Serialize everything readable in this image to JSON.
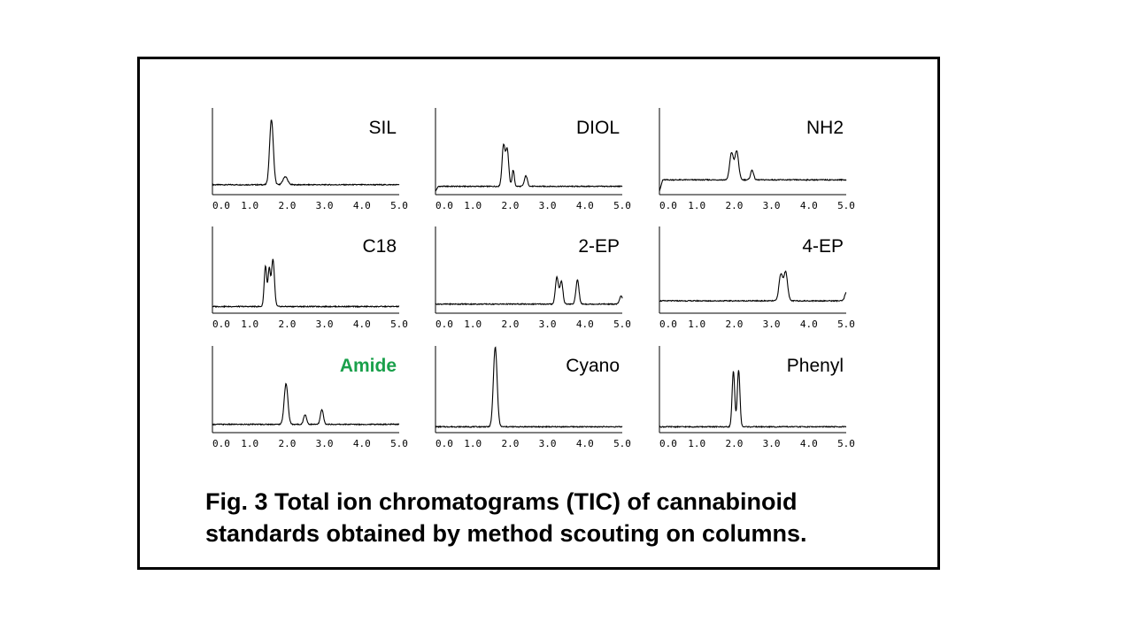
{
  "caption": {
    "line1": "Fig. 3  Total ion chromatograms (TIC) of cannabinoid",
    "line2": "standards obtained by method scouting on columns."
  },
  "colors": {
    "highlight": "#1aa04b",
    "default": "#000000"
  },
  "chart_data": [
    {
      "type": "line",
      "title": "SIL",
      "title_color": "#000000",
      "xticks": [
        "0.0",
        "1.0",
        "2.0",
        "3.0",
        "4.0",
        "5.0"
      ],
      "xlim": [
        0,
        5
      ],
      "baseline": 0.1,
      "start_drop": false,
      "peaks": [
        {
          "x": 1.58,
          "height": 0.8,
          "width": 0.05
        },
        {
          "x": 1.95,
          "height": 0.1,
          "width": 0.06
        }
      ]
    },
    {
      "type": "line",
      "title": "DIOL",
      "title_color": "#000000",
      "xticks": [
        "0.0",
        "1.0",
        "2.0",
        "3.0",
        "4.0",
        "5.0"
      ],
      "xlim": [
        0,
        5
      ],
      "baseline": 0.08,
      "start_drop": true,
      "peaks": [
        {
          "x": 1.82,
          "height": 0.5,
          "width": 0.04
        },
        {
          "x": 1.92,
          "height": 0.45,
          "width": 0.04
        },
        {
          "x": 2.08,
          "height": 0.2,
          "width": 0.03
        },
        {
          "x": 2.42,
          "height": 0.13,
          "width": 0.04
        }
      ]
    },
    {
      "type": "line",
      "title": "NH2",
      "title_color": "#000000",
      "xticks": [
        "0.0",
        "1.0",
        "2.0",
        "3.0",
        "4.0",
        "5.0"
      ],
      "xlim": [
        0,
        5
      ],
      "baseline": 0.16,
      "start_drop": true,
      "peaks": [
        {
          "x": 1.93,
          "height": 0.33,
          "width": 0.05
        },
        {
          "x": 2.07,
          "height": 0.35,
          "width": 0.05
        },
        {
          "x": 2.48,
          "height": 0.12,
          "width": 0.04
        }
      ]
    },
    {
      "type": "line",
      "title": "C18",
      "title_color": "#000000",
      "xticks": [
        "0.0",
        "1.0",
        "2.0",
        "3.0",
        "4.0",
        "5.0"
      ],
      "xlim": [
        0,
        5
      ],
      "baseline": 0.06,
      "start_drop": false,
      "peaks": [
        {
          "x": 1.42,
          "height": 0.5,
          "width": 0.035
        },
        {
          "x": 1.52,
          "height": 0.45,
          "width": 0.03
        },
        {
          "x": 1.62,
          "height": 0.58,
          "width": 0.04
        }
      ]
    },
    {
      "type": "line",
      "title": "2-EP",
      "title_color": "#000000",
      "xticks": [
        "0.0",
        "1.0",
        "2.0",
        "3.0",
        "4.0",
        "5.0"
      ],
      "xlim": [
        0,
        5
      ],
      "baseline": 0.09,
      "start_drop": false,
      "peaks": [
        {
          "x": 3.25,
          "height": 0.33,
          "width": 0.04
        },
        {
          "x": 3.37,
          "height": 0.28,
          "width": 0.04
        },
        {
          "x": 3.8,
          "height": 0.3,
          "width": 0.04
        },
        {
          "x": 4.97,
          "height": 0.1,
          "width": 0.04
        }
      ]
    },
    {
      "type": "line",
      "title": "4-EP",
      "title_color": "#000000",
      "xticks": [
        "0.0",
        "1.0",
        "2.0",
        "3.0",
        "4.0",
        "5.0"
      ],
      "xlim": [
        0,
        5
      ],
      "baseline": 0.13,
      "start_drop": false,
      "peaks": [
        {
          "x": 3.25,
          "height": 0.32,
          "width": 0.05
        },
        {
          "x": 3.38,
          "height": 0.35,
          "width": 0.05
        },
        {
          "x": 5.0,
          "height": 0.1,
          "width": 0.04
        }
      ]
    },
    {
      "type": "line",
      "title": "Amide",
      "title_color": "#1aa04b",
      "xticks": [
        "0.0",
        "1.0",
        "2.0",
        "3.0",
        "4.0",
        "5.0"
      ],
      "xlim": [
        0,
        5
      ],
      "baseline": 0.08,
      "start_drop": false,
      "peaks": [
        {
          "x": 1.97,
          "height": 0.5,
          "width": 0.05
        },
        {
          "x": 2.48,
          "height": 0.12,
          "width": 0.04
        },
        {
          "x": 2.93,
          "height": 0.18,
          "width": 0.04
        }
      ]
    },
    {
      "type": "line",
      "title": "Cyano",
      "title_color": "#000000",
      "xticks": [
        "0.0",
        "1.0",
        "2.0",
        "3.0",
        "4.0",
        "5.0"
      ],
      "xlim": [
        0,
        5
      ],
      "baseline": 0.05,
      "start_drop": false,
      "peaks": [
        {
          "x": 1.6,
          "height": 0.98,
          "width": 0.05
        }
      ]
    },
    {
      "type": "line",
      "title": "Phenyl",
      "title_color": "#000000",
      "xticks": [
        "0.0",
        "1.0",
        "2.0",
        "3.0",
        "4.0",
        "5.0"
      ],
      "xlim": [
        0,
        5
      ],
      "baseline": 0.05,
      "start_drop": false,
      "peaks": [
        {
          "x": 1.98,
          "height": 0.68,
          "width": 0.035
        },
        {
          "x": 2.12,
          "height": 0.7,
          "width": 0.035
        }
      ]
    }
  ]
}
